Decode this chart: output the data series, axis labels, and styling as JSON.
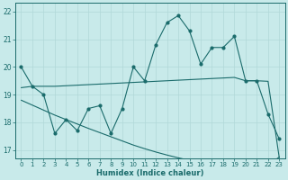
{
  "xlabel": "Humidex (Indice chaleur)",
  "bg_color": "#c8eaea",
  "line_color": "#1a6b6b",
  "grid_color": "#b0d8d8",
  "ylim": [
    16.7,
    22.3
  ],
  "xlim": [
    -0.5,
    23.5
  ],
  "yticks": [
    17,
    18,
    19,
    20,
    21,
    22
  ],
  "xticks": [
    0,
    1,
    2,
    3,
    4,
    5,
    6,
    7,
    8,
    9,
    10,
    11,
    12,
    13,
    14,
    15,
    16,
    17,
    18,
    19,
    20,
    21,
    22,
    23
  ],
  "main_x": [
    0,
    1,
    2,
    3,
    4,
    5,
    6,
    7,
    8,
    9,
    10,
    11,
    12,
    13,
    14,
    15,
    16,
    17,
    18,
    19,
    20,
    21,
    22,
    23
  ],
  "main_y": [
    20.0,
    19.3,
    19.0,
    17.6,
    18.1,
    17.7,
    18.5,
    18.6,
    17.6,
    18.5,
    20.0,
    19.5,
    20.8,
    21.6,
    21.85,
    21.3,
    20.1,
    20.7,
    20.7,
    21.1,
    19.5,
    19.5,
    18.3,
    17.4
  ],
  "upper_x": [
    0,
    1,
    2,
    3,
    4,
    5,
    6,
    7,
    8,
    9,
    10,
    11,
    12,
    13,
    14,
    15,
    16,
    17,
    18,
    19,
    20,
    21,
    22,
    23
  ],
  "upper_y": [
    19.25,
    19.3,
    19.3,
    19.3,
    19.32,
    19.34,
    19.36,
    19.38,
    19.4,
    19.42,
    19.44,
    19.46,
    19.48,
    19.5,
    19.52,
    19.54,
    19.56,
    19.58,
    19.6,
    19.62,
    19.5,
    19.5,
    19.48,
    16.72
  ],
  "lower_x": [
    0,
    1,
    2,
    3,
    4,
    5,
    6,
    7,
    8,
    9,
    10,
    11,
    12,
    13,
    14,
    15,
    16,
    17,
    18,
    19,
    20,
    21,
    22,
    23
  ],
  "lower_y": [
    18.8,
    18.62,
    18.44,
    18.26,
    18.1,
    17.94,
    17.78,
    17.63,
    17.48,
    17.33,
    17.18,
    17.05,
    16.93,
    16.82,
    16.72,
    16.63,
    16.55,
    16.48,
    16.43,
    16.38,
    16.4,
    16.42,
    16.44,
    16.75
  ]
}
